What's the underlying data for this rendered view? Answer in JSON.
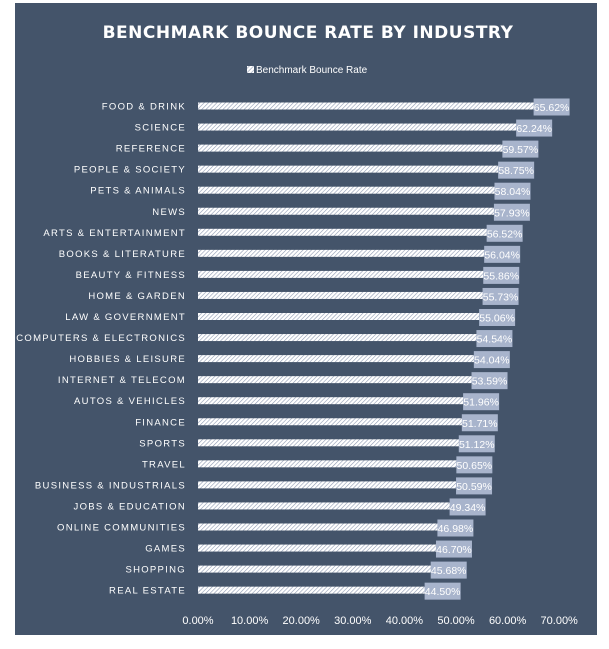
{
  "chart_data": {
    "type": "bar",
    "orientation": "horizontal",
    "title": "BENCHMARK BOUNCE RATE BY INDUSTRY",
    "legend": {
      "placement": "top",
      "entries": [
        "Benchmark Bounce Rate"
      ]
    },
    "xlabel": "",
    "ylabel": "",
    "xlim": [
      0,
      70
    ],
    "grid": false,
    "bar_color": "#ffffff",
    "label_box_color": "#a8b4cc",
    "background_color": "#44546a",
    "x_ticks": [
      "0.00%",
      "10.00%",
      "20.00%",
      "30.00%",
      "40.00%",
      "50.00%",
      "60.00%",
      "70.00%"
    ],
    "series": [
      {
        "name": "Benchmark Bounce Rate",
        "categories": [
          "FOOD & DRINK",
          "SCIENCE",
          "REFERENCE",
          "PEOPLE & SOCIETY",
          "PETS & ANIMALS",
          "NEWS",
          "ARTS & ENTERTAINMENT",
          "BOOKS & LITERATURE",
          "BEAUTY & FITNESS",
          "HOME & GARDEN",
          "LAW & GOVERNMENT",
          "COMPUTERS & ELECTRONICS",
          "HOBBIES & LEISURE",
          "INTERNET & TELECOM",
          "AUTOS & VEHICLES",
          "FINANCE",
          "SPORTS",
          "TRAVEL",
          "BUSINESS & INDUSTRIALS",
          "JOBS & EDUCATION",
          "ONLINE COMMUNITIES",
          "GAMES",
          "SHOPPING",
          "REAL ESTATE"
        ],
        "values": [
          65.62,
          62.24,
          59.57,
          58.75,
          58.04,
          57.93,
          56.52,
          56.04,
          55.86,
          55.73,
          55.06,
          54.54,
          54.04,
          53.59,
          51.96,
          51.71,
          51.12,
          50.65,
          50.59,
          49.34,
          46.98,
          46.7,
          45.68,
          44.5
        ],
        "labels": [
          "65.62%",
          "62.24%",
          "59.57%",
          "58.75%",
          "58.04%",
          "57.93%",
          "56.52%",
          "56.04%",
          "55.86%",
          "55.73%",
          "55.06%",
          "54.54%",
          "54.04%",
          "53.59%",
          "51.96%",
          "51.71%",
          "51.12%",
          "50.65%",
          "50.59%",
          "49.34%",
          "46.98%",
          "46.70%",
          "45.68%",
          "44.50%"
        ]
      }
    ]
  }
}
